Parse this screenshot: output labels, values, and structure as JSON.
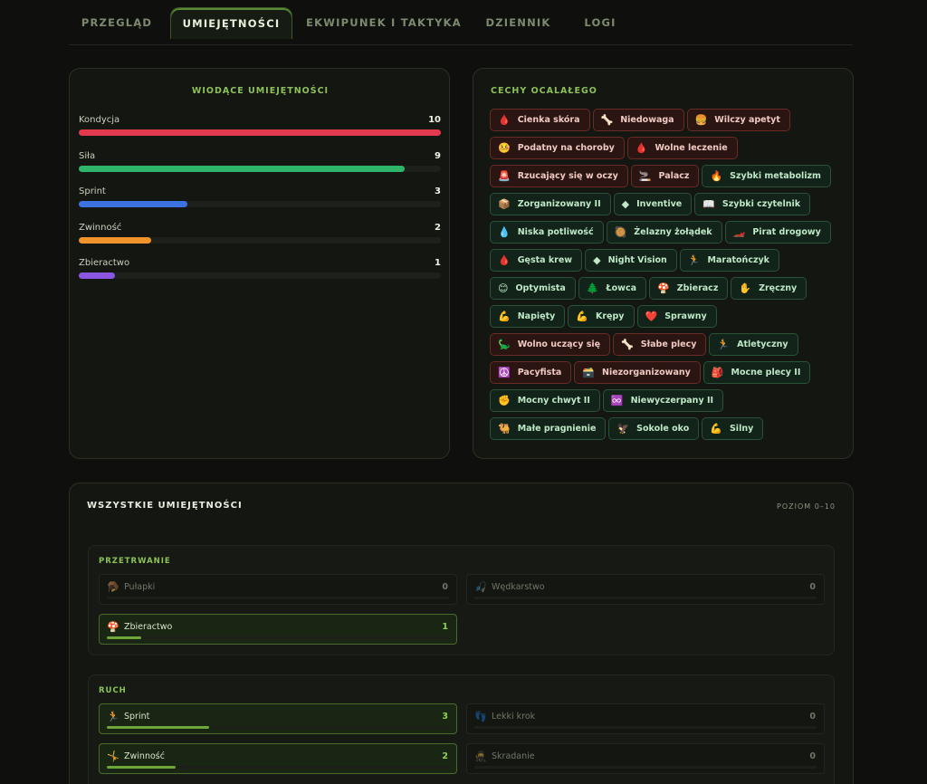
{
  "tabs": [
    {
      "label": "PRZEGLĄD"
    },
    {
      "label": "UMIEJĘTNOŚCI"
    },
    {
      "label": "EKWIPUNEK I TAKTYKA"
    },
    {
      "label": "DZIENNIK"
    },
    {
      "label": "LOGI"
    }
  ],
  "leading": {
    "title": "WIODĄCE UMIEJĘTNOŚCI",
    "max": 10,
    "skills": [
      {
        "name": "Kondycja",
        "value": 10,
        "color": "#e2394e"
      },
      {
        "name": "Siła",
        "value": 9,
        "color": "#2fb56a"
      },
      {
        "name": "Sprint",
        "value": 3,
        "color": "#3c72e2"
      },
      {
        "name": "Zwinność",
        "value": 2,
        "color": "#f0932a"
      },
      {
        "name": "Zbieractwo",
        "value": 1,
        "color": "#8a55e0"
      }
    ]
  },
  "traits": {
    "title": "CECHY OCALAŁEGO",
    "items": [
      {
        "label": "Cienka skóra",
        "icon": "🩸",
        "kind": "neg"
      },
      {
        "label": "Niedowaga",
        "icon": "🦴",
        "kind": "neg"
      },
      {
        "label": "Wilczy apetyt",
        "icon": "🍔",
        "kind": "neg"
      },
      {
        "label": "Podatny na choroby",
        "icon": "🤒",
        "kind": "neg"
      },
      {
        "label": "Wolne leczenie",
        "icon": "🩸",
        "kind": "neg"
      },
      {
        "label": "Rzucający się w oczy",
        "icon": "🚨",
        "kind": "neg"
      },
      {
        "label": "Palacz",
        "icon": "🚬",
        "kind": "neg"
      },
      {
        "label": "Szybki metabolizm",
        "icon": "🔥",
        "kind": "pos"
      },
      {
        "label": "Zorganizowany II",
        "icon": "📦",
        "kind": "pos"
      },
      {
        "label": "Inventive",
        "icon": "◆",
        "kind": "pos"
      },
      {
        "label": "Szybki czytelnik",
        "icon": "📖",
        "kind": "pos"
      },
      {
        "label": "Niska potliwość",
        "icon": "💧",
        "kind": "pos"
      },
      {
        "label": "Żelazny żołądek",
        "icon": "🥘",
        "kind": "pos"
      },
      {
        "label": "Pirat drogowy",
        "icon": "🏎️",
        "kind": "pos"
      },
      {
        "label": "Gęsta krew",
        "icon": "🩸",
        "kind": "pos"
      },
      {
        "label": "Night Vision",
        "icon": "◆",
        "kind": "pos"
      },
      {
        "label": "Maratończyk",
        "icon": "🏃",
        "kind": "pos"
      },
      {
        "label": "Optymista",
        "icon": "😊",
        "kind": "pos"
      },
      {
        "label": "Łowca",
        "icon": "🌲",
        "kind": "pos"
      },
      {
        "label": "Zbieracz",
        "icon": "🍄",
        "kind": "pos"
      },
      {
        "label": "Zręczny",
        "icon": "✋",
        "kind": "pos"
      },
      {
        "label": "Napięty",
        "icon": "💪",
        "kind": "pos"
      },
      {
        "label": "Krępy",
        "icon": "💪",
        "kind": "pos"
      },
      {
        "label": "Sprawny",
        "icon": "❤️",
        "kind": "pos"
      },
      {
        "label": "Wolno uczący się",
        "icon": "🦕",
        "kind": "neg"
      },
      {
        "label": "Słabe plecy",
        "icon": "🦴",
        "kind": "neg"
      },
      {
        "label": "Atletyczny",
        "icon": "🏃",
        "kind": "pos"
      },
      {
        "label": "Pacyfista",
        "icon": "☮️",
        "kind": "neg"
      },
      {
        "label": "Niezorganizowany",
        "icon": "🗃️",
        "kind": "neg"
      },
      {
        "label": "Mocne plecy II",
        "icon": "🎒",
        "kind": "pos"
      },
      {
        "label": "Mocny chwyt II",
        "icon": "✊",
        "kind": "pos"
      },
      {
        "label": "Niewyczerpany II",
        "icon": "♾️",
        "kind": "pos"
      },
      {
        "label": "Małe pragnienie",
        "icon": "🐫",
        "kind": "pos"
      },
      {
        "label": "Sokole oko",
        "icon": "🦅",
        "kind": "pos"
      },
      {
        "label": "Silny",
        "icon": "💪",
        "kind": "pos"
      }
    ]
  },
  "all": {
    "title": "WSZYSTKIE UMIEJĘTNOŚCI",
    "range": "POZIOM 0–10",
    "max": 10,
    "groups": [
      {
        "title": "PRZETRWANIE",
        "skills": [
          {
            "name": "Pułapki",
            "value": 0,
            "icon": "🪤"
          },
          {
            "name": "Wędkarstwo",
            "value": 0,
            "icon": "🎣"
          },
          {
            "name": "Zbieractwo",
            "value": 1,
            "icon": "🍄"
          }
        ]
      },
      {
        "title": "RUCH",
        "skills": [
          {
            "name": "Sprint",
            "value": 3,
            "icon": "🏃"
          },
          {
            "name": "Lekki krok",
            "value": 0,
            "icon": "👣"
          },
          {
            "name": "Zwinność",
            "value": 2,
            "icon": "🤸"
          },
          {
            "name": "Skradanie",
            "value": 0,
            "icon": "🥷"
          }
        ]
      }
    ]
  }
}
